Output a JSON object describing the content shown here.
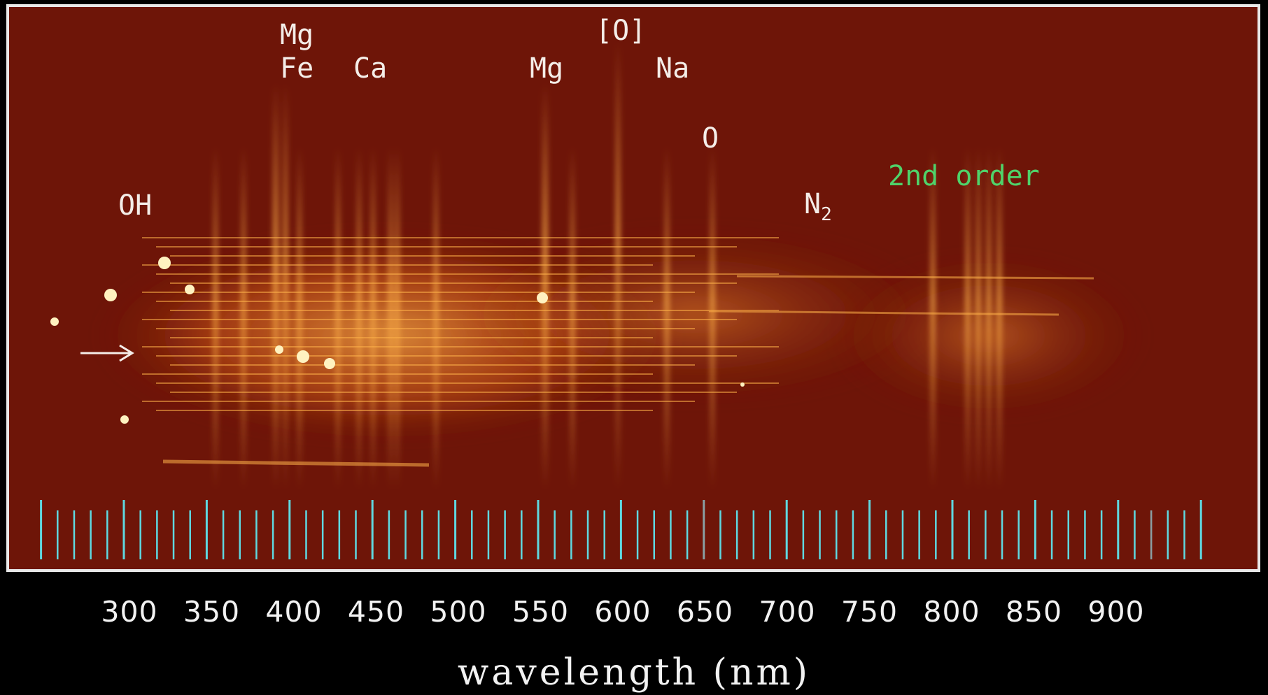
{
  "labels": {
    "mg1": "Mg",
    "fe": "Fe",
    "ca": "Ca",
    "mg2": "Mg",
    "o_forbidden": "[O]",
    "na": "Na",
    "o": "O",
    "oh": "OH",
    "n2_base": "N",
    "n2_sub": "2",
    "second_order": "2nd order"
  },
  "axis": {
    "ticks": [
      "300",
      "350",
      "400",
      "450",
      "500",
      "550",
      "600",
      "650",
      "700",
      "750",
      "800",
      "850",
      "900"
    ],
    "title": "wavelength (nm)"
  },
  "colors": {
    "background": "#6e1508",
    "glow": "#ffb24a",
    "tick": "#5fd8e0",
    "label_green": "#4fd36a"
  }
}
